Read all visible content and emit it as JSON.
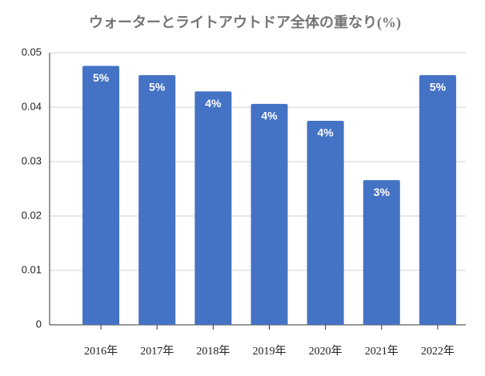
{
  "chart_data": {
    "type": "bar",
    "title": "ウォーターとライトアウトドア全体の重なり(%)",
    "categories": [
      "2016年",
      "2017年",
      "2018年",
      "2019年",
      "2020年",
      "2021年",
      "2022年"
    ],
    "values": [
      0.0476,
      0.0459,
      0.0429,
      0.0406,
      0.0375,
      0.0266,
      0.0459
    ],
    "value_labels": [
      "5%",
      "5%",
      "4%",
      "4%",
      "4%",
      "3%",
      "5%"
    ],
    "color": "#4472c4",
    "ylim": [
      0,
      0.05
    ],
    "yticks": [
      0,
      0.01,
      0.02,
      0.03,
      0.04,
      0.05
    ],
    "grid": true
  }
}
